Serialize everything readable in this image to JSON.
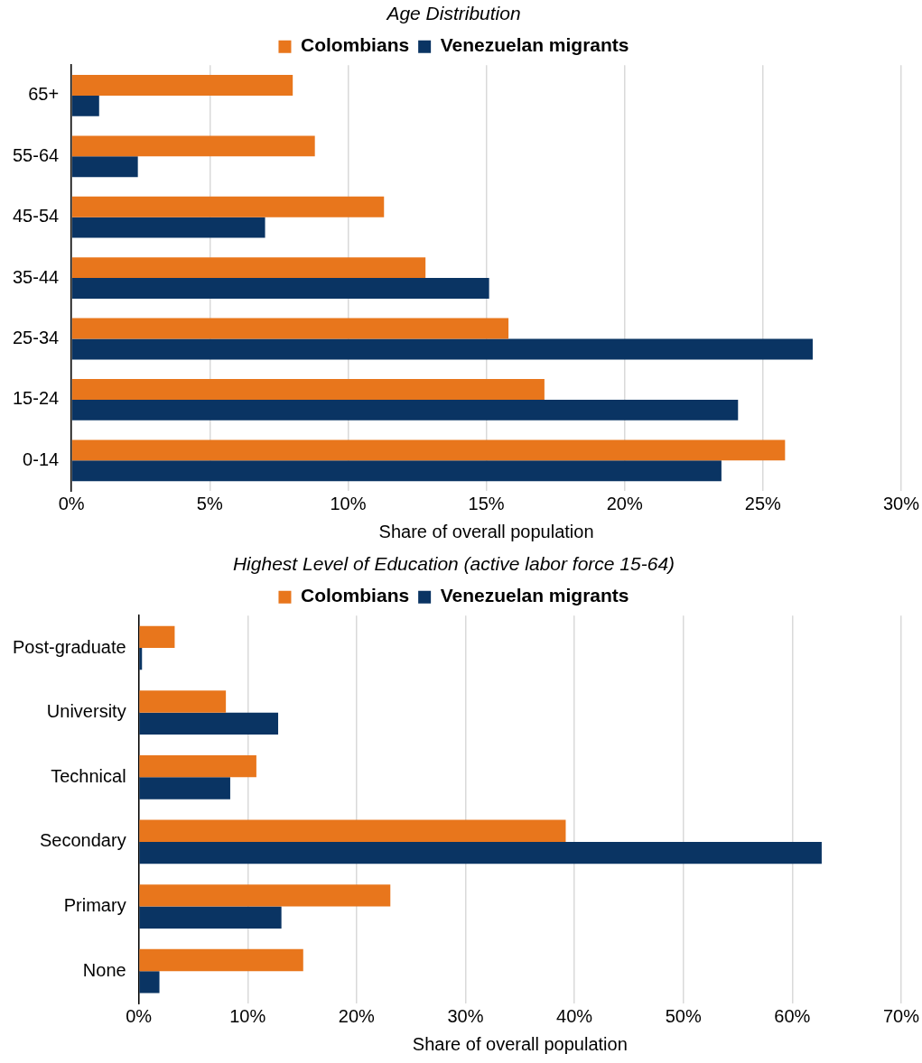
{
  "chart_data": [
    {
      "type": "bar",
      "orientation": "horizontal",
      "title": "Age Distribution",
      "xlabel": "Share of overall population",
      "categories": [
        "65+",
        "55-64",
        "45-54",
        "35-44",
        "25-34",
        "15-24",
        "0-14"
      ],
      "series": [
        {
          "name": "Colombians",
          "color": "#e8761c",
          "values": [
            8.0,
            8.8,
            11.3,
            12.8,
            15.8,
            17.1,
            25.8
          ]
        },
        {
          "name": "Venezuelan migrants",
          "color": "#0a3463",
          "values": [
            1.0,
            2.4,
            7.0,
            15.1,
            26.8,
            24.1,
            23.5
          ]
        }
      ],
      "xlim": [
        0,
        30
      ],
      "xticks": [
        {
          "value": 0,
          "label": "0%"
        },
        {
          "value": 5,
          "label": "5%"
        },
        {
          "value": 10,
          "label": "10%"
        },
        {
          "value": 15,
          "label": "15%"
        },
        {
          "value": 20,
          "label": "20%"
        },
        {
          "value": 25,
          "label": "25%"
        },
        {
          "value": 30,
          "label": "30%"
        }
      ],
      "grid": "x",
      "legend": "top"
    },
    {
      "type": "bar",
      "orientation": "horizontal",
      "title": "Highest Level of Education (active labor force 15-64)",
      "xlabel": "Share of overall population",
      "categories": [
        "Post-graduate",
        "University",
        "Technical",
        "Secondary",
        "Primary",
        "None"
      ],
      "series": [
        {
          "name": "Colombians",
          "color": "#e8761c",
          "values": [
            3.3,
            8.0,
            10.8,
            39.2,
            23.1,
            15.1
          ]
        },
        {
          "name": "Venezuelan migrants",
          "color": "#0a3463",
          "values": [
            0.3,
            12.8,
            8.4,
            62.7,
            13.1,
            1.9
          ]
        }
      ],
      "xlim": [
        0,
        70
      ],
      "xticks": [
        {
          "value": 0,
          "label": "0%"
        },
        {
          "value": 10,
          "label": "10%"
        },
        {
          "value": 20,
          "label": "20%"
        },
        {
          "value": 30,
          "label": "30%"
        },
        {
          "value": 40,
          "label": "40%"
        },
        {
          "value": 50,
          "label": "50%"
        },
        {
          "value": 60,
          "label": "60%"
        },
        {
          "value": 70,
          "label": "70%"
        }
      ],
      "grid": "x",
      "legend": "top"
    }
  ]
}
